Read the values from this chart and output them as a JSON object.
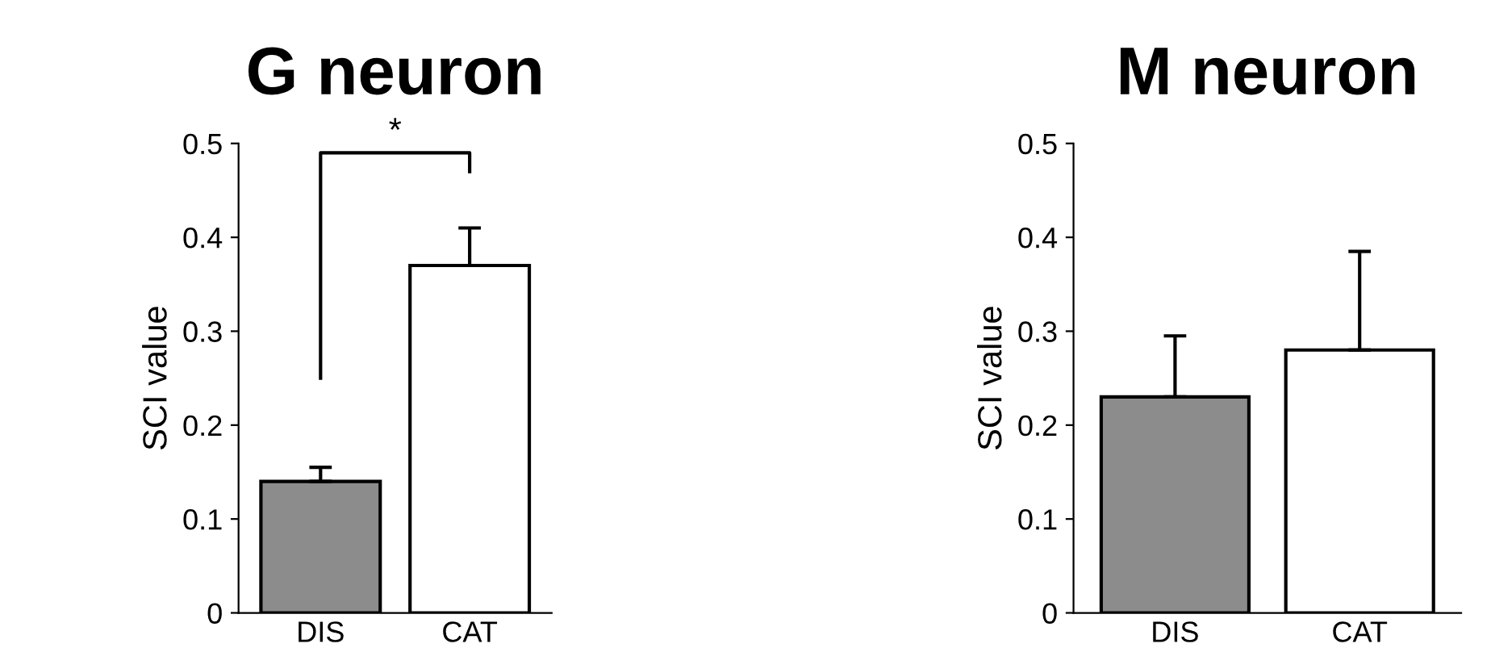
{
  "chart_data": [
    {
      "type": "bar",
      "title": "G neuron",
      "ylabel": "SCI value",
      "categories": [
        "DIS",
        "CAT"
      ],
      "values": [
        0.14,
        0.37
      ],
      "colors": [
        "#8c8c8c",
        "#ffffff"
      ],
      "errors": [
        [
          0.14,
          0.155
        ],
        [
          0.37,
          0.41
        ]
      ],
      "ylim": [
        0,
        0.5
      ],
      "yticks": [
        0,
        0.1,
        0.2,
        0.3,
        0.4,
        0.5
      ],
      "annotations": [
        "*"
      ]
    },
    {
      "type": "bar",
      "title": "M neuron",
      "ylabel": "SCI value",
      "categories": [
        "DIS",
        "CAT"
      ],
      "values": [
        0.23,
        0.28
      ],
      "colors": [
        "#8c8c8c",
        "#ffffff"
      ],
      "errors": [
        [
          0.23,
          0.295
        ],
        [
          0.28,
          0.385
        ]
      ],
      "ylim": [
        0,
        0.5
      ],
      "yticks": [
        0,
        0.1,
        0.2,
        0.3,
        0.4,
        0.5
      ]
    }
  ]
}
